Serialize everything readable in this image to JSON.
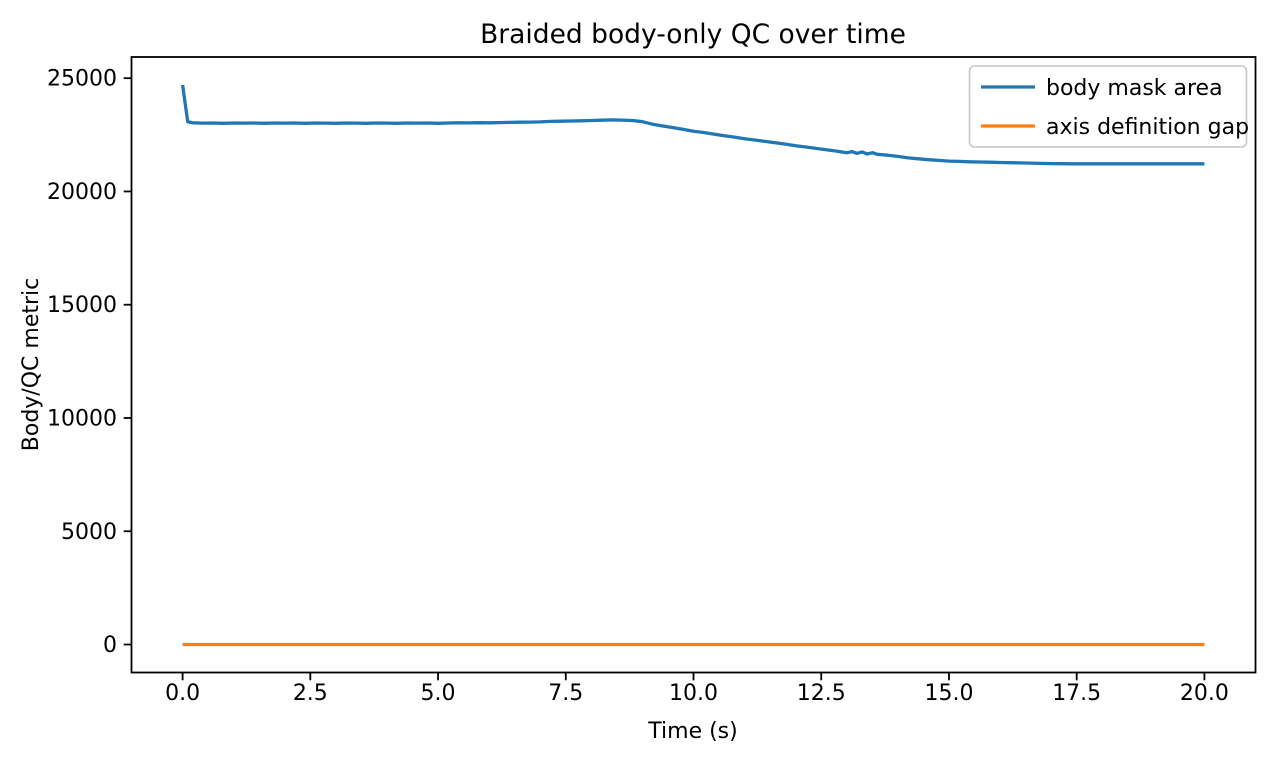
{
  "figure": {
    "background": "#ffffff"
  },
  "chart_data": {
    "type": "line",
    "title": "Braided body-only QC over time",
    "xlabel": "Time (s)",
    "ylabel": "Body/QC metric",
    "xlim": [
      -1.0,
      21.0
    ],
    "ylim": [
      -1235,
      25935
    ],
    "grid": false,
    "legend": {
      "position": "upper right"
    },
    "xticks": {
      "values": [
        0,
        2.5,
        5,
        7.5,
        10,
        12.5,
        15,
        17.5,
        20
      ],
      "labels": [
        "0.0",
        "2.5",
        "5.0",
        "7.5",
        "10.0",
        "12.5",
        "15.0",
        "17.5",
        "20.0"
      ]
    },
    "yticks": {
      "values": [
        0,
        5000,
        10000,
        15000,
        20000,
        25000
      ],
      "labels": [
        "0",
        "5000",
        "10000",
        "15000",
        "20000",
        "25000"
      ]
    },
    "axis_color": "#000000",
    "series": [
      {
        "name": "body mask area",
        "color": "#1f77b4",
        "linewidth": 3.3,
        "points": [
          [
            0,
            24700
          ],
          [
            0.1,
            23080
          ],
          [
            0.2,
            23030
          ],
          [
            0.4,
            23015
          ],
          [
            0.6,
            23020
          ],
          [
            0.8,
            23010
          ],
          [
            1,
            23020
          ],
          [
            1.2,
            23015
          ],
          [
            1.4,
            23020
          ],
          [
            1.6,
            23010
          ],
          [
            1.8,
            23020
          ],
          [
            2,
            23015
          ],
          [
            2.2,
            23020
          ],
          [
            2.4,
            23010
          ],
          [
            2.6,
            23020
          ],
          [
            2.8,
            23015
          ],
          [
            3,
            23010
          ],
          [
            3.2,
            23020
          ],
          [
            3.4,
            23015
          ],
          [
            3.6,
            23010
          ],
          [
            3.8,
            23020
          ],
          [
            4,
            23015
          ],
          [
            4.2,
            23010
          ],
          [
            4.4,
            23020
          ],
          [
            4.6,
            23015
          ],
          [
            4.8,
            23020
          ],
          [
            5,
            23010
          ],
          [
            5.2,
            23020
          ],
          [
            5.4,
            23030
          ],
          [
            5.6,
            23025
          ],
          [
            5.8,
            23035
          ],
          [
            6,
            23030
          ],
          [
            6.2,
            23040
          ],
          [
            6.4,
            23050
          ],
          [
            6.6,
            23055
          ],
          [
            6.8,
            23060
          ],
          [
            7,
            23070
          ],
          [
            7.2,
            23090
          ],
          [
            7.4,
            23100
          ],
          [
            7.6,
            23110
          ],
          [
            7.8,
            23120
          ],
          [
            8,
            23130
          ],
          [
            8.2,
            23145
          ],
          [
            8.4,
            23160
          ],
          [
            8.6,
            23150
          ],
          [
            8.8,
            23130
          ],
          [
            9,
            23080
          ],
          [
            9.2,
            22970
          ],
          [
            9.4,
            22890
          ],
          [
            9.6,
            22820
          ],
          [
            9.8,
            22740
          ],
          [
            10,
            22660
          ],
          [
            10.2,
            22600
          ],
          [
            10.4,
            22530
          ],
          [
            10.6,
            22460
          ],
          [
            10.8,
            22400
          ],
          [
            11,
            22330
          ],
          [
            11.2,
            22270
          ],
          [
            11.4,
            22210
          ],
          [
            11.6,
            22150
          ],
          [
            11.8,
            22090
          ],
          [
            12,
            22020
          ],
          [
            12.2,
            21960
          ],
          [
            12.4,
            21900
          ],
          [
            12.6,
            21845
          ],
          [
            12.8,
            21780
          ],
          [
            13,
            21705
          ],
          [
            13.1,
            21760
          ],
          [
            13.2,
            21680
          ],
          [
            13.3,
            21745
          ],
          [
            13.4,
            21655
          ],
          [
            13.5,
            21710
          ],
          [
            13.6,
            21640
          ],
          [
            13.8,
            21600
          ],
          [
            14,
            21545
          ],
          [
            14.2,
            21480
          ],
          [
            14.4,
            21440
          ],
          [
            14.6,
            21400
          ],
          [
            14.8,
            21370
          ],
          [
            15,
            21340
          ],
          [
            15.2,
            21325
          ],
          [
            15.4,
            21310
          ],
          [
            15.6,
            21300
          ],
          [
            15.8,
            21290
          ],
          [
            16,
            21280
          ],
          [
            16.2,
            21270
          ],
          [
            16.4,
            21260
          ],
          [
            16.6,
            21250
          ],
          [
            16.8,
            21240
          ],
          [
            17,
            21230
          ],
          [
            17.2,
            21225
          ],
          [
            17.4,
            21220
          ],
          [
            17.6,
            21220
          ],
          [
            17.8,
            21220
          ],
          [
            18,
            21220
          ],
          [
            18.2,
            21220
          ],
          [
            18.4,
            21220
          ],
          [
            18.6,
            21220
          ],
          [
            18.8,
            21220
          ],
          [
            19,
            21220
          ],
          [
            19.2,
            21220
          ],
          [
            19.4,
            21220
          ],
          [
            19.6,
            21220
          ],
          [
            19.8,
            21220
          ],
          [
            20,
            21220
          ]
        ]
      },
      {
        "name": "axis definition gap",
        "color": "#ff7f0e",
        "linewidth": 3.3,
        "points": [
          [
            0,
            0
          ],
          [
            20,
            0
          ]
        ]
      }
    ]
  }
}
